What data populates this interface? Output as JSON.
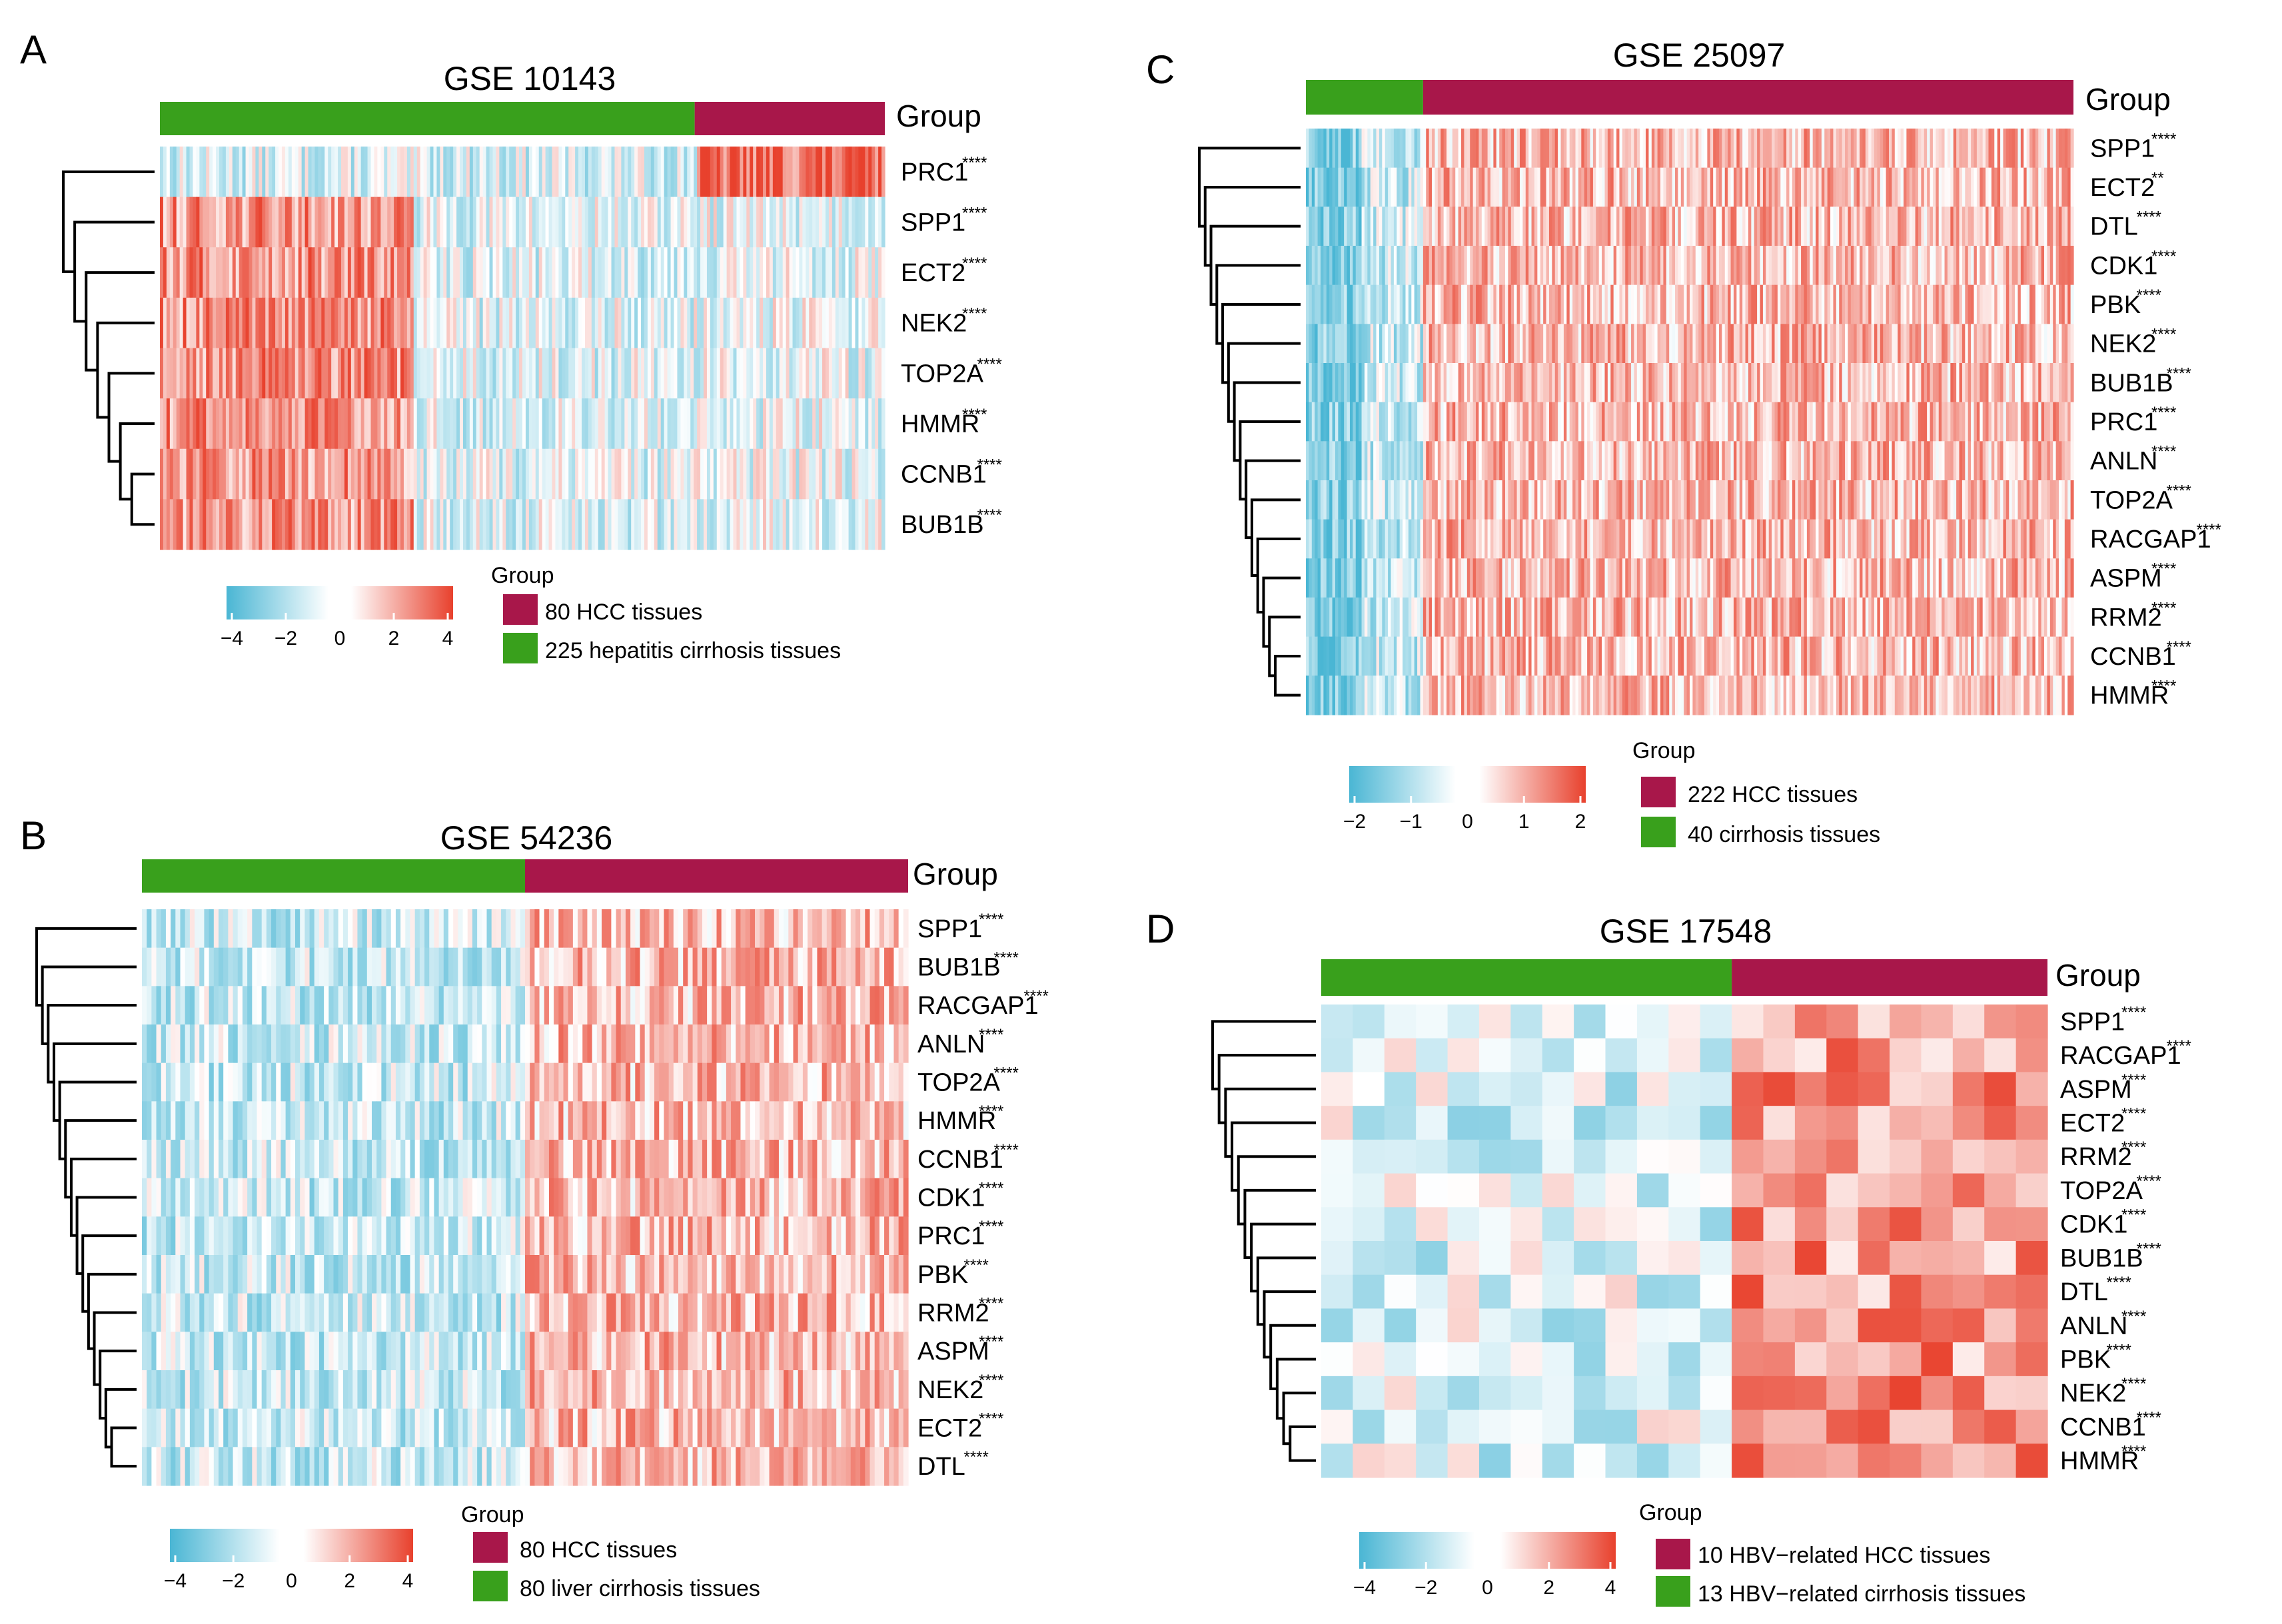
{
  "colors": {
    "hcc": "#A8174A",
    "cirrhosis": "#39A01C",
    "low": "#4AB6D4",
    "mid": "#FFFFFF",
    "high": "#E8412D"
  },
  "chart_data": [
    {
      "type": "heatmap",
      "panel": "A",
      "title": "GSE 10143",
      "group_label": "Group",
      "rows": [
        {
          "gene": "PRC1",
          "sig": "****"
        },
        {
          "gene": "SPP1",
          "sig": "****"
        },
        {
          "gene": "ECT2",
          "sig": "****"
        },
        {
          "gene": "NEK2",
          "sig": "****"
        },
        {
          "gene": "TOP2A",
          "sig": "****"
        },
        {
          "gene": "HMMR",
          "sig": "****"
        },
        {
          "gene": "CCNB1",
          "sig": "****"
        },
        {
          "gene": "BUB1B",
          "sig": "****"
        }
      ],
      "groups": [
        {
          "label": "80 HCC tissues",
          "n": 80,
          "color_key": "hcc"
        },
        {
          "label": "225 hepatitis cirrhosis tissues",
          "n": 225,
          "color_key": "cirrhosis"
        }
      ],
      "order": [
        "cirrhosis",
        "hcc"
      ],
      "n_columns": 305,
      "colorbar": {
        "ticks": [
          "−4",
          "−2",
          "0",
          "2",
          "4"
        ],
        "range": [
          -4,
          4
        ]
      },
      "legend_title": "Group"
    },
    {
      "type": "heatmap",
      "panel": "B",
      "title": "GSE 54236",
      "group_label": "Group",
      "rows": [
        {
          "gene": "SPP1",
          "sig": "****"
        },
        {
          "gene": "BUB1B",
          "sig": "****"
        },
        {
          "gene": "RACGAP1",
          "sig": "****"
        },
        {
          "gene": "ANLN",
          "sig": "****"
        },
        {
          "gene": "TOP2A",
          "sig": "****"
        },
        {
          "gene": "HMMR",
          "sig": "****"
        },
        {
          "gene": "CCNB1",
          "sig": "****"
        },
        {
          "gene": "CDK1",
          "sig": "****"
        },
        {
          "gene": "PRC1",
          "sig": "****"
        },
        {
          "gene": "PBK",
          "sig": "****"
        },
        {
          "gene": "RRM2",
          "sig": "****"
        },
        {
          "gene": "ASPM",
          "sig": "****"
        },
        {
          "gene": "NEK2",
          "sig": "****"
        },
        {
          "gene": "ECT2",
          "sig": "****"
        },
        {
          "gene": "DTL",
          "sig": "****"
        }
      ],
      "groups": [
        {
          "label": "80 HCC tissues",
          "n": 80,
          "color_key": "hcc"
        },
        {
          "label": "80 liver cirrhosis tissues",
          "n": 80,
          "color_key": "cirrhosis"
        }
      ],
      "order": [
        "cirrhosis",
        "hcc"
      ],
      "n_columns": 160,
      "colorbar": {
        "ticks": [
          "−4",
          "−2",
          "0",
          "2",
          "4"
        ],
        "range": [
          -4,
          4
        ]
      },
      "legend_title": "Group"
    },
    {
      "type": "heatmap",
      "panel": "C",
      "title": "GSE 25097",
      "group_label": "Group",
      "rows": [
        {
          "gene": "SPP1",
          "sig": "****"
        },
        {
          "gene": "ECT2",
          "sig": "**"
        },
        {
          "gene": "DTL",
          "sig": "****"
        },
        {
          "gene": "CDK1",
          "sig": "****"
        },
        {
          "gene": "PBK",
          "sig": "****"
        },
        {
          "gene": "NEK2",
          "sig": "****"
        },
        {
          "gene": "BUB1B",
          "sig": "****"
        },
        {
          "gene": "PRC1",
          "sig": "****"
        },
        {
          "gene": "ANLN",
          "sig": "****"
        },
        {
          "gene": "TOP2A",
          "sig": "****"
        },
        {
          "gene": "RACGAP1",
          "sig": "****"
        },
        {
          "gene": "ASPM",
          "sig": "****"
        },
        {
          "gene": "RRM2",
          "sig": "****"
        },
        {
          "gene": "CCNB1",
          "sig": "****"
        },
        {
          "gene": "HMMR",
          "sig": "****"
        }
      ],
      "groups": [
        {
          "label": "222  HCC tissues",
          "n": 222,
          "color_key": "hcc"
        },
        {
          "label": "40 cirrhosis tissues",
          "n": 40,
          "color_key": "cirrhosis"
        }
      ],
      "order": [
        "cirrhosis",
        "hcc"
      ],
      "n_columns": 262,
      "colorbar": {
        "ticks": [
          "−2",
          "−1",
          "0",
          "1",
          "2"
        ],
        "range": [
          -2,
          2
        ]
      },
      "legend_title": "Group"
    },
    {
      "type": "heatmap",
      "panel": "D",
      "title": "GSE 17548",
      "group_label": "Group",
      "rows": [
        {
          "gene": "SPP1",
          "sig": "****"
        },
        {
          "gene": "RACGAP1",
          "sig": "****"
        },
        {
          "gene": "ASPM",
          "sig": "****"
        },
        {
          "gene": "ECT2",
          "sig": "****"
        },
        {
          "gene": "RRM2",
          "sig": "****"
        },
        {
          "gene": "TOP2A",
          "sig": "****"
        },
        {
          "gene": "CDK1",
          "sig": "****"
        },
        {
          "gene": "BUB1B",
          "sig": "****"
        },
        {
          "gene": "DTL",
          "sig": "****"
        },
        {
          "gene": "ANLN",
          "sig": "****"
        },
        {
          "gene": "PBK",
          "sig": "****"
        },
        {
          "gene": "NEK2",
          "sig": "****"
        },
        {
          "gene": "CCNB1",
          "sig": "****"
        },
        {
          "gene": "HMMR",
          "sig": "****"
        }
      ],
      "groups": [
        {
          "label": "10 HBV−related  HCC tissues",
          "n": 10,
          "color_key": "hcc"
        },
        {
          "label": "13 HBV−related cirrhosis tissues",
          "n": 13,
          "color_key": "cirrhosis"
        }
      ],
      "order": [
        "cirrhosis",
        "hcc"
      ],
      "n_columns": 23,
      "colorbar": {
        "ticks": [
          "−4",
          "−2",
          "0",
          "2",
          "4"
        ],
        "range": [
          -4,
          4
        ]
      },
      "legend_title": "Group"
    }
  ]
}
